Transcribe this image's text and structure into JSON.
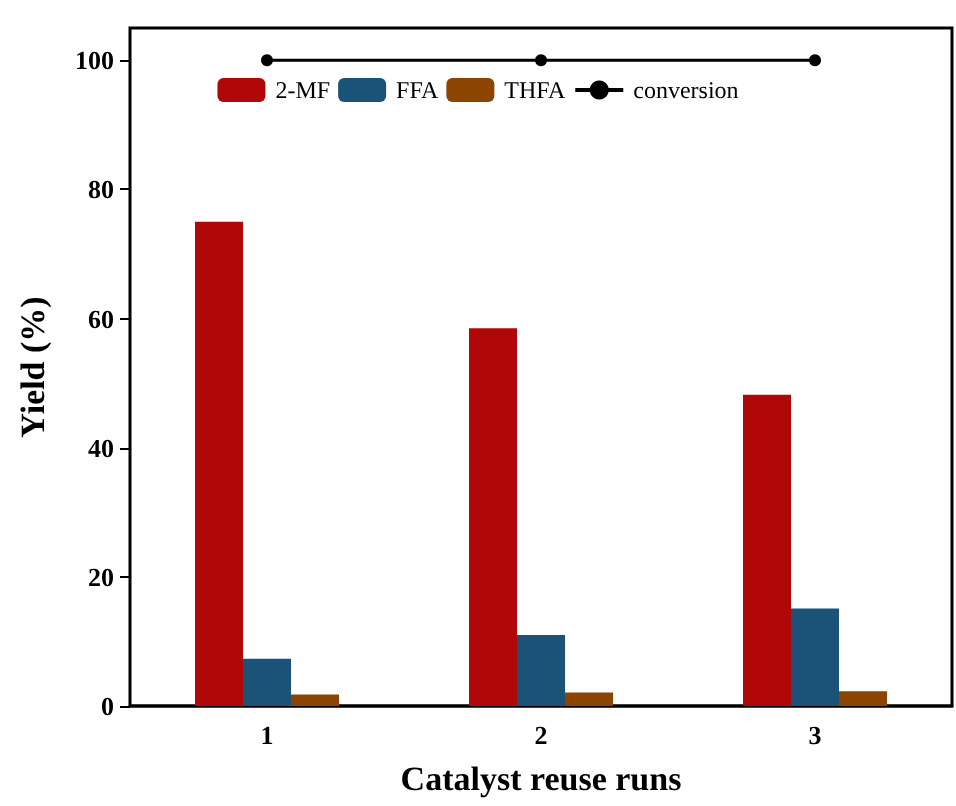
{
  "chart_data": {
    "type": "bar",
    "xlabel": "Catalyst reuse runs",
    "ylabel": "Yield (%)",
    "categories": [
      "1",
      "2",
      "3"
    ],
    "series": [
      {
        "name": "2-MF",
        "color": "#b00808",
        "values": [
          75,
          58.5,
          48.2
        ]
      },
      {
        "name": "FFA",
        "color": "#1a5278",
        "values": [
          7.3,
          11,
          15.1
        ]
      },
      {
        "name": "THFA",
        "color": "#8b4500",
        "values": [
          1.8,
          2.1,
          2.3
        ]
      },
      {
        "name": "conversion",
        "type": "line",
        "color": "#000000",
        "values": [
          100,
          100,
          100
        ]
      }
    ],
    "ylim": [
      0,
      105
    ],
    "yticks": [
      0,
      20,
      40,
      60,
      80,
      100
    ],
    "grid": false,
    "legend": "top",
    "marker": "circle",
    "line_style": "solid"
  }
}
